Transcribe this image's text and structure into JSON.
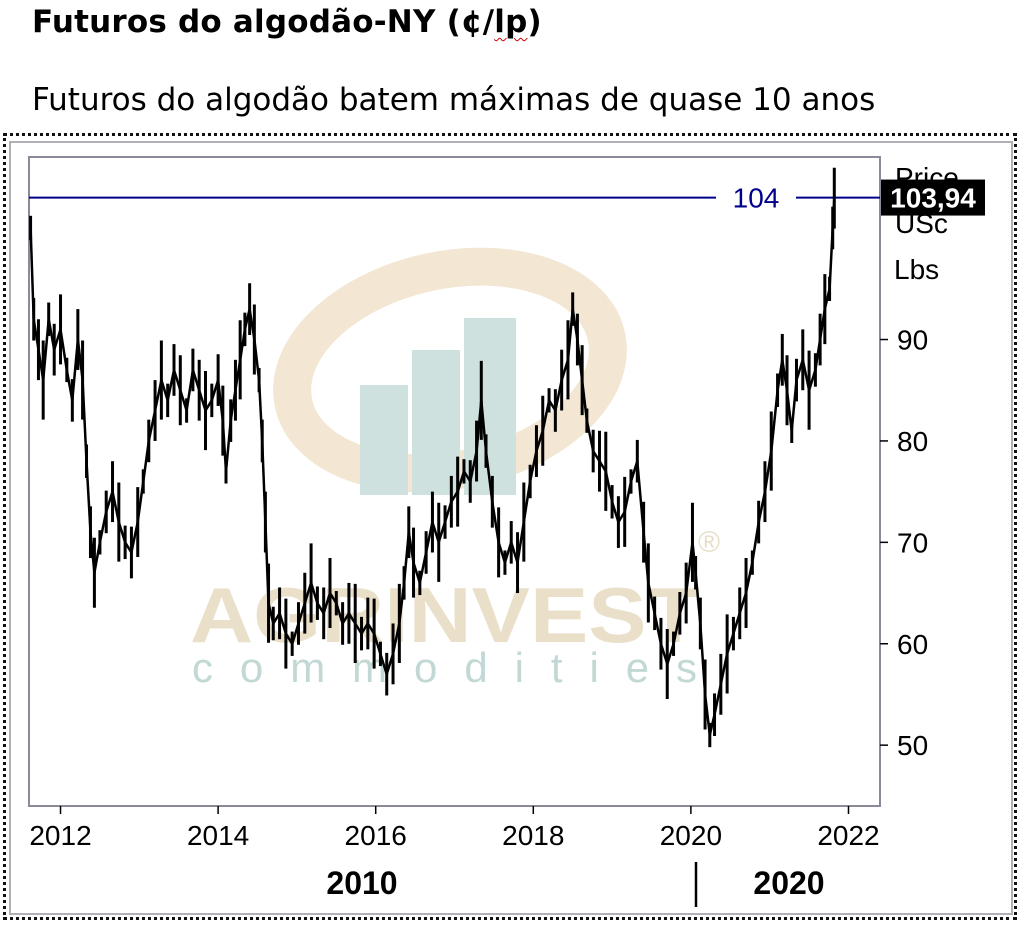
{
  "header": {
    "title_main": "Futuros do algodão-NY (¢/",
    "title_unit": "lp",
    "title_end": ")",
    "subtitle": "Futuros do algodão batem máximas de quase 10 anos"
  },
  "watermark": {
    "brand": "AGRINVEST",
    "tagline": "commodities",
    "registered_mark": "®"
  },
  "chart_data": {
    "type": "line",
    "title": "Futuros do algodão-NY (¢/lp)",
    "subtitle": "Futuros do algodão batem máximas de quase 10 anos",
    "axis_title": [
      "Price",
      "USc",
      "Lbs"
    ],
    "x": {
      "range": [
        2011.6,
        2022.4
      ],
      "ticks": [
        2012,
        2014,
        2016,
        2018,
        2020,
        2022
      ],
      "tick_labels": [
        "2012",
        "2014",
        "2016",
        "2018",
        "2020",
        "2022"
      ],
      "decade_labels": [
        "2010",
        "2020"
      ]
    },
    "y": {
      "range": [
        44,
        108
      ],
      "ticks": [
        50,
        60,
        70,
        80,
        90
      ],
      "tick_labels": [
        "50",
        "60",
        "70",
        "80",
        "90"
      ],
      "position": "right"
    },
    "reference_line": {
      "value": 104,
      "label": "104",
      "color": "#00008b"
    },
    "last_value": {
      "value": 103.94,
      "label": "103,94"
    },
    "grid": false,
    "series": [
      {
        "color": "#000000",
        "points": [
          [
            2011.62,
            101
          ],
          [
            2011.66,
            92
          ],
          [
            2011.72,
            89
          ],
          [
            2011.78,
            86
          ],
          [
            2011.85,
            92
          ],
          [
            2011.92,
            89
          ],
          [
            2012.0,
            91
          ],
          [
            2012.08,
            87
          ],
          [
            2012.15,
            84
          ],
          [
            2012.22,
            90
          ],
          [
            2012.28,
            86
          ],
          [
            2012.33,
            78
          ],
          [
            2012.38,
            71
          ],
          [
            2012.43,
            67
          ],
          [
            2012.5,
            70
          ],
          [
            2012.58,
            73
          ],
          [
            2012.66,
            75
          ],
          [
            2012.74,
            72
          ],
          [
            2012.82,
            70
          ],
          [
            2012.9,
            69
          ],
          [
            2012.98,
            72
          ],
          [
            2013.05,
            76
          ],
          [
            2013.12,
            80
          ],
          [
            2013.2,
            83
          ],
          [
            2013.28,
            86
          ],
          [
            2013.36,
            84
          ],
          [
            2013.44,
            87
          ],
          [
            2013.52,
            85
          ],
          [
            2013.6,
            83
          ],
          [
            2013.68,
            87
          ],
          [
            2013.76,
            85
          ],
          [
            2013.84,
            83
          ],
          [
            2013.92,
            84
          ],
          [
            2014.0,
            86
          ],
          [
            2014.06,
            82
          ],
          [
            2014.1,
            77
          ],
          [
            2014.16,
            82
          ],
          [
            2014.22,
            85
          ],
          [
            2014.28,
            88
          ],
          [
            2014.34,
            91
          ],
          [
            2014.4,
            93
          ],
          [
            2014.46,
            90
          ],
          [
            2014.52,
            86
          ],
          [
            2014.56,
            80
          ],
          [
            2014.6,
            72
          ],
          [
            2014.64,
            64
          ],
          [
            2014.7,
            62
          ],
          [
            2014.78,
            63
          ],
          [
            2014.86,
            61
          ],
          [
            2014.94,
            60
          ],
          [
            2015.02,
            62
          ],
          [
            2015.1,
            64
          ],
          [
            2015.18,
            66
          ],
          [
            2015.26,
            64
          ],
          [
            2015.34,
            63
          ],
          [
            2015.42,
            65
          ],
          [
            2015.5,
            64
          ],
          [
            2015.58,
            62
          ],
          [
            2015.66,
            63
          ],
          [
            2015.74,
            62
          ],
          [
            2015.82,
            61
          ],
          [
            2015.9,
            62
          ],
          [
            2015.98,
            61
          ],
          [
            2016.06,
            59
          ],
          [
            2016.14,
            57
          ],
          [
            2016.22,
            59
          ],
          [
            2016.3,
            62
          ],
          [
            2016.36,
            66
          ],
          [
            2016.42,
            71
          ],
          [
            2016.48,
            68
          ],
          [
            2016.56,
            66
          ],
          [
            2016.64,
            69
          ],
          [
            2016.72,
            72
          ],
          [
            2016.8,
            70
          ],
          [
            2016.88,
            72
          ],
          [
            2016.96,
            74
          ],
          [
            2017.04,
            75
          ],
          [
            2017.12,
            77
          ],
          [
            2017.2,
            76
          ],
          [
            2017.28,
            79
          ],
          [
            2017.34,
            84
          ],
          [
            2017.4,
            79
          ],
          [
            2017.48,
            74
          ],
          [
            2017.56,
            70
          ],
          [
            2017.64,
            68
          ],
          [
            2017.72,
            70
          ],
          [
            2017.8,
            68
          ],
          [
            2017.88,
            72
          ],
          [
            2017.96,
            76
          ],
          [
            2018.04,
            79
          ],
          [
            2018.12,
            81
          ],
          [
            2018.2,
            84
          ],
          [
            2018.28,
            83
          ],
          [
            2018.36,
            86
          ],
          [
            2018.44,
            88
          ],
          [
            2018.5,
            93
          ],
          [
            2018.56,
            90
          ],
          [
            2018.62,
            86
          ],
          [
            2018.68,
            82
          ],
          [
            2018.76,
            79
          ],
          [
            2018.84,
            78
          ],
          [
            2018.92,
            77
          ],
          [
            2019.0,
            74
          ],
          [
            2019.08,
            72
          ],
          [
            2019.16,
            73
          ],
          [
            2019.24,
            76
          ],
          [
            2019.32,
            78
          ],
          [
            2019.4,
            71
          ],
          [
            2019.46,
            66
          ],
          [
            2019.54,
            63
          ],
          [
            2019.62,
            60
          ],
          [
            2019.7,
            58
          ],
          [
            2019.78,
            60
          ],
          [
            2019.86,
            63
          ],
          [
            2019.94,
            65
          ],
          [
            2020.02,
            70
          ],
          [
            2020.06,
            67
          ],
          [
            2020.12,
            62
          ],
          [
            2020.18,
            55
          ],
          [
            2020.24,
            51
          ],
          [
            2020.3,
            53
          ],
          [
            2020.38,
            56
          ],
          [
            2020.46,
            59
          ],
          [
            2020.54,
            61
          ],
          [
            2020.62,
            63
          ],
          [
            2020.7,
            65
          ],
          [
            2020.78,
            68
          ],
          [
            2020.86,
            72
          ],
          [
            2020.94,
            75
          ],
          [
            2021.02,
            79
          ],
          [
            2021.1,
            85
          ],
          [
            2021.16,
            88
          ],
          [
            2021.22,
            85
          ],
          [
            2021.28,
            81
          ],
          [
            2021.34,
            86
          ],
          [
            2021.42,
            88
          ],
          [
            2021.5,
            85
          ],
          [
            2021.58,
            87
          ],
          [
            2021.64,
            90
          ],
          [
            2021.7,
            93
          ],
          [
            2021.76,
            95
          ],
          [
            2021.8,
            101
          ],
          [
            2021.82,
            103.94
          ]
        ]
      }
    ]
  }
}
